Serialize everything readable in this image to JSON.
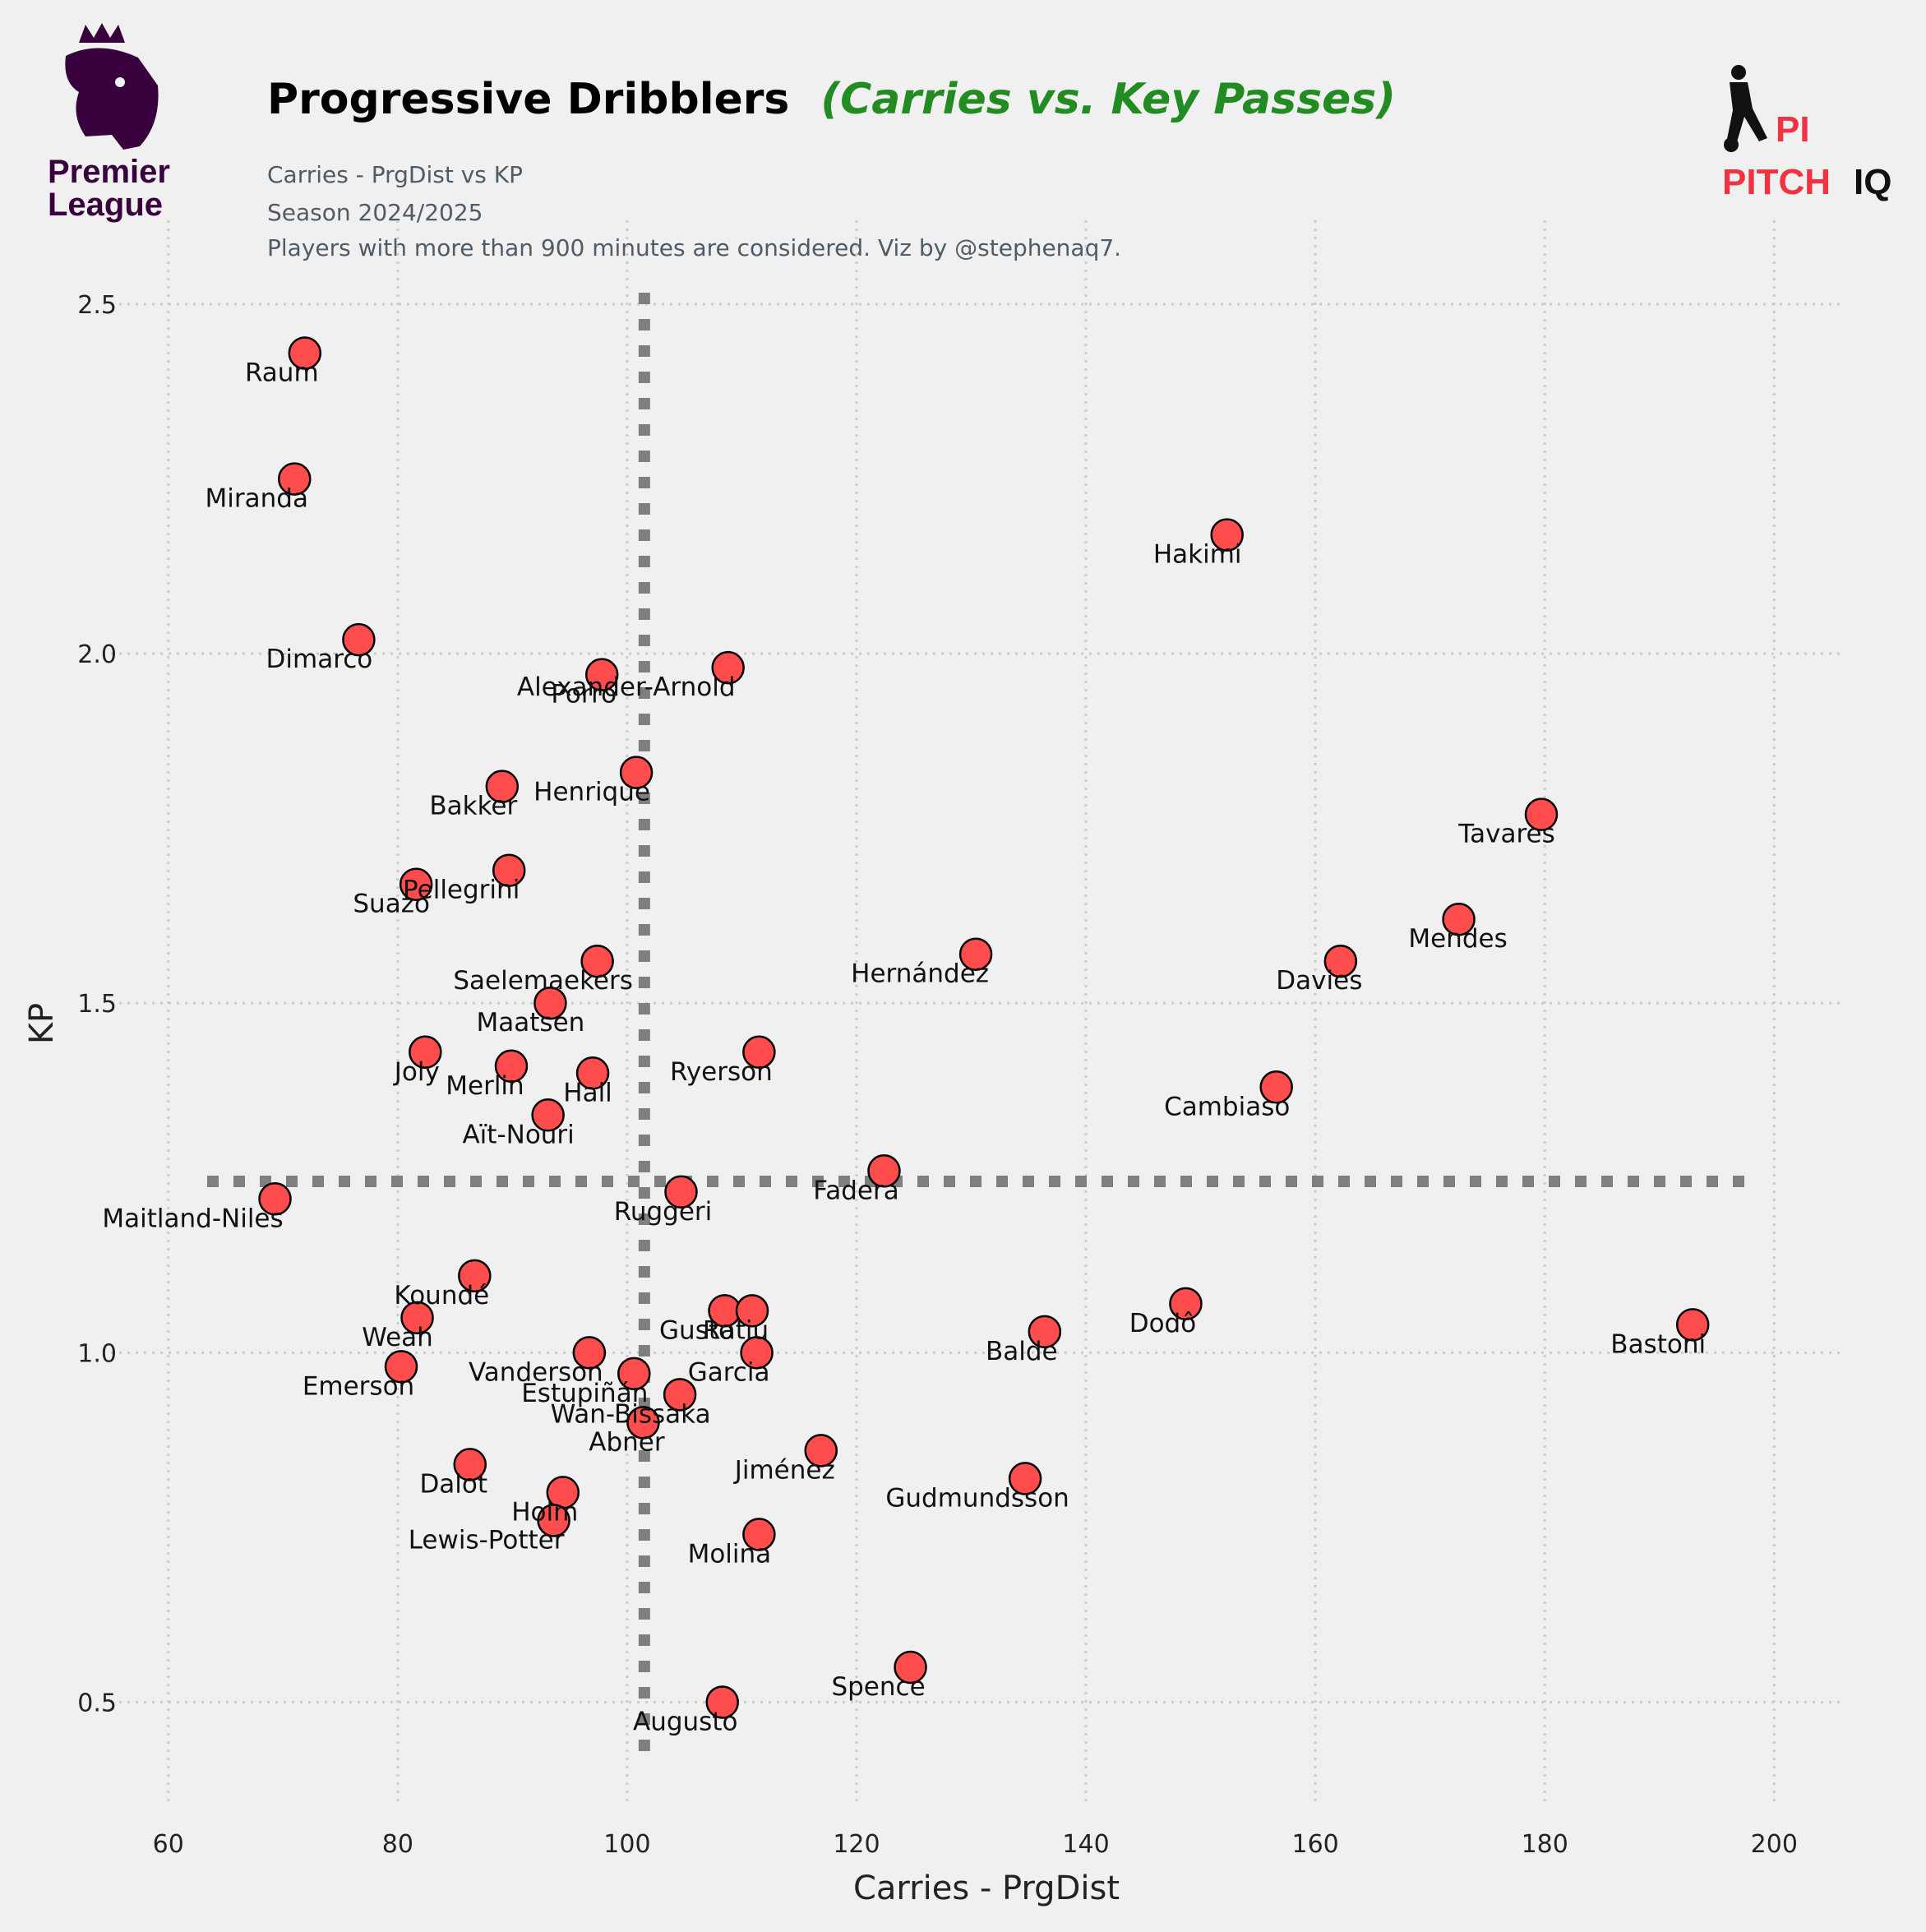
{
  "header": {
    "title_main": "Progressive Dribblers",
    "title_accent": "(Carries vs. Key Passes)",
    "subtitle_lines": [
      "Carries - PrgDist vs KP",
      "Season 2024/2025",
      "Players with more than 900 minutes are considered. Viz by @stephenaq7."
    ]
  },
  "logos": {
    "league_line1": "Premier",
    "league_line2": "League",
    "brand_left": "PITCH",
    "brand_right": "IQ",
    "brand_mark": "PI",
    "league_color": "#38003c",
    "brand_color": "#ef3340"
  },
  "colors": {
    "background": "#f0f0f0",
    "point_fill": "#ff4d4d",
    "point_stroke": "#000000",
    "grid": "#cccccc",
    "mean_lines": "#7f7f7f"
  },
  "chart_data": {
    "type": "scatter",
    "xlabel": "Carries - PrgDist",
    "ylabel": "KP",
    "xlim": [
      55,
      206
    ],
    "ylim": [
      0.35,
      2.62
    ],
    "xticks": [
      60,
      80,
      100,
      120,
      140,
      160,
      180,
      200
    ],
    "yticks": [
      0.5,
      1.0,
      1.5,
      2.0,
      2.5
    ],
    "xtick_labels": [
      "60",
      "80",
      "100",
      "120",
      "140",
      "160",
      "180",
      "200"
    ],
    "ytick_labels": [
      "0.5",
      "1.0",
      "1.5",
      "2.0",
      "2.5"
    ],
    "grid": true,
    "mean_x": 101.5,
    "mean_y": 1.245,
    "points": [
      {
        "name": "Raum",
        "x": 71.9,
        "y": 2.43
      },
      {
        "name": "Miranda",
        "x": 71.0,
        "y": 2.25
      },
      {
        "name": "Hakimi",
        "x": 152.3,
        "y": 2.17
      },
      {
        "name": "Dimarco",
        "x": 76.6,
        "y": 2.02
      },
      {
        "name": "Alexander-Arnold",
        "x": 108.8,
        "y": 1.98
      },
      {
        "name": "Porro",
        "x": 97.8,
        "y": 1.97
      },
      {
        "name": "Henrique",
        "x": 100.8,
        "y": 1.83
      },
      {
        "name": "Bakker",
        "x": 89.1,
        "y": 1.81
      },
      {
        "name": "Tavares",
        "x": 179.7,
        "y": 1.77
      },
      {
        "name": "Pellegrini",
        "x": 89.7,
        "y": 1.69
      },
      {
        "name": "Suazo",
        "x": 81.6,
        "y": 1.67
      },
      {
        "name": "Mendes",
        "x": 172.5,
        "y": 1.62
      },
      {
        "name": "Hernández",
        "x": 130.4,
        "y": 1.57
      },
      {
        "name": "Davies",
        "x": 162.2,
        "y": 1.56
      },
      {
        "name": "Saelemaekers",
        "x": 97.4,
        "y": 1.56
      },
      {
        "name": "Maatsen",
        "x": 93.3,
        "y": 1.5
      },
      {
        "name": "Ryerson",
        "x": 111.5,
        "y": 1.43
      },
      {
        "name": "Joly",
        "x": 82.4,
        "y": 1.43
      },
      {
        "name": "Merlin",
        "x": 89.9,
        "y": 1.41
      },
      {
        "name": "Hall",
        "x": 97.0,
        "y": 1.4
      },
      {
        "name": "Cambiaso",
        "x": 156.6,
        "y": 1.38
      },
      {
        "name": "Aït-Nouri",
        "x": 93.1,
        "y": 1.34
      },
      {
        "name": "Fadera",
        "x": 122.4,
        "y": 1.26
      },
      {
        "name": "Ruggeri",
        "x": 104.7,
        "y": 1.23
      },
      {
        "name": "Maitland-Niles",
        "x": 69.3,
        "y": 1.22
      },
      {
        "name": "Koundé",
        "x": 86.7,
        "y": 1.11
      },
      {
        "name": "Dodô",
        "x": 148.7,
        "y": 1.07
      },
      {
        "name": "Gusto",
        "x": 108.5,
        "y": 1.06
      },
      {
        "name": "Ratiu",
        "x": 110.9,
        "y": 1.06
      },
      {
        "name": "Weah",
        "x": 81.7,
        "y": 1.05
      },
      {
        "name": "Bastoni",
        "x": 192.9,
        "y": 1.04
      },
      {
        "name": "Balde",
        "x": 136.4,
        "y": 1.03
      },
      {
        "name": "Vanderson",
        "x": 96.7,
        "y": 1.0
      },
      {
        "name": "Garcia",
        "x": 111.3,
        "y": 1.0
      },
      {
        "name": "Emerson",
        "x": 80.3,
        "y": 0.98
      },
      {
        "name": "Estupiñán",
        "x": 100.6,
        "y": 0.97
      },
      {
        "name": "Wan-Bissaka",
        "x": 104.6,
        "y": 0.94
      },
      {
        "name": "Abner",
        "x": 101.4,
        "y": 0.9
      },
      {
        "name": "Jiménez",
        "x": 116.9,
        "y": 0.86
      },
      {
        "name": "Dalot",
        "x": 86.3,
        "y": 0.84
      },
      {
        "name": "Gudmundsson",
        "x": 134.7,
        "y": 0.82
      },
      {
        "name": "Holm",
        "x": 94.4,
        "y": 0.8
      },
      {
        "name": "Lewis-Potter",
        "x": 93.6,
        "y": 0.76
      },
      {
        "name": "Molina",
        "x": 111.5,
        "y": 0.74
      },
      {
        "name": "Spence",
        "x": 124.7,
        "y": 0.55
      },
      {
        "name": "Augusto",
        "x": 108.3,
        "y": 0.5
      }
    ]
  }
}
